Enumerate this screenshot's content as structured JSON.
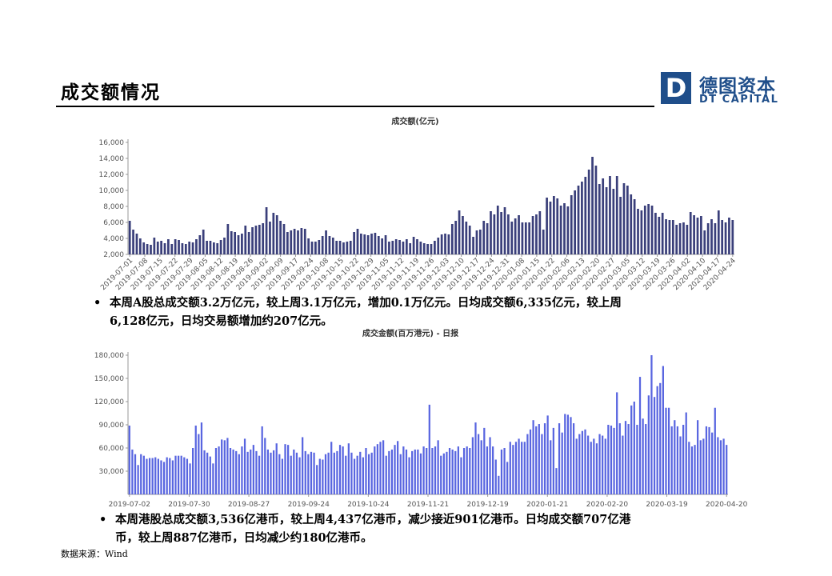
{
  "page": {
    "title": "成交额情况",
    "source": "数据来源：Wind",
    "logo": {
      "mark": "D",
      "cn": "德图资本",
      "en": "DT CAPITAL"
    },
    "bullets": [
      {
        "text_line1": "本周A股总成交额3.2万亿元，较上周3.1万亿元，增加0.1万亿元。日均成交额6,335亿元，较上周",
        "text_line2": "6,128亿元，日均交易额增加约207亿元。"
      },
      {
        "text_line1": "本周港股总成交额3,536亿港币，较上周4,437亿港币，减少接近901亿港币。日均成交额707亿港",
        "text_line2": "币，较上周887亿港币，日均减少约180亿港币。"
      }
    ],
    "bullet_symbol": "•"
  },
  "chart_data": [
    {
      "type": "bar",
      "title": "成交额(亿元)",
      "ylim": [
        2000,
        16000
      ],
      "yticks": [
        "2,000",
        "4,000",
        "6,000",
        "8,000",
        "10,000",
        "12,000",
        "14,000",
        "16,000"
      ],
      "ytick_values": [
        2000,
        4000,
        6000,
        8000,
        10000,
        12000,
        14000,
        16000
      ],
      "xtick_labels": [
        "2019-07-01",
        "2019-07-08",
        "2019-07-15",
        "2019-07-22",
        "2019-07-29",
        "2019-08-05",
        "2019-08-12",
        "2019-08-19",
        "2019-08-26",
        "2019-09-02",
        "2019-09-09",
        "2019-09-17",
        "2019-09-24",
        "2019-10-08",
        "2019-10-15",
        "2019-10-22",
        "2019-10-29",
        "2019-11-05",
        "2019-11-12",
        "2019-11-19",
        "2019-11-26",
        "2019-12-03",
        "2019-12-10",
        "2019-12-17",
        "2019-12-24",
        "2019-12-31",
        "2020-01-08",
        "2020-01-15",
        "2020-01-22",
        "2020-02-06",
        "2020-02-13",
        "2020-02-20",
        "2020-02-27",
        "2020-03-05",
        "2020-03-12",
        "2020-03-19",
        "2020-03-26",
        "2020-04-02",
        "2020-04-10",
        "2020-04-17",
        "2020-04-24"
      ],
      "grid": false,
      "legend": "none",
      "color": "#3a3f7a",
      "values": [
        6200,
        5100,
        4600,
        4000,
        3500,
        3300,
        3200,
        4100,
        3600,
        3700,
        3400,
        3900,
        3300,
        3900,
        3800,
        3400,
        3300,
        3600,
        3500,
        3900,
        4400,
        5100,
        3700,
        3700,
        3500,
        3400,
        3800,
        4100,
        5800,
        4900,
        4800,
        4400,
        4600,
        5600,
        4800,
        5400,
        5600,
        5700,
        5900,
        7900,
        6100,
        7200,
        6900,
        6200,
        5800,
        4800,
        5000,
        5200,
        5000,
        5300,
        5200,
        4000,
        3600,
        3600,
        3800,
        4300,
        5000,
        4300,
        4100,
        3700,
        3700,
        3500,
        3600,
        3700,
        4800,
        5200,
        4600,
        4500,
        4400,
        4600,
        4700,
        4300,
        4000,
        4400,
        3600,
        3700,
        3900,
        3800,
        3600,
        3900,
        3400,
        4200,
        3900,
        3600,
        3400,
        3300,
        3300,
        3700,
        4100,
        4500,
        4600,
        4500,
        5800,
        6200,
        7500,
        6800,
        6100,
        5600,
        4200,
        5000,
        5100,
        6200,
        5900,
        7400,
        7000,
        8100,
        7300,
        7900,
        7000,
        6100,
        6500,
        6900,
        6000,
        6000,
        6000,
        6800,
        7000,
        7400,
        5100,
        9100,
        8600,
        9300,
        9000,
        8100,
        8400,
        8000,
        9400,
        10000,
        10600,
        11100,
        11700,
        12600,
        14200,
        13100,
        10800,
        11500,
        10400,
        11800,
        10200,
        11800,
        9200,
        10900,
        10600,
        9500,
        8900,
        7700,
        7500,
        8100,
        8300,
        8100,
        7200,
        6700,
        7200,
        6400,
        6300,
        6300,
        5700,
        5900,
        6000,
        5700,
        7300,
        6900,
        6600,
        6800,
        5000,
        5900,
        6400,
        5900,
        7500,
        6300,
        6000,
        6600,
        6300
      ]
    },
    {
      "type": "bar",
      "title": "成交金额(百万港元) - 日报",
      "ylim": [
        0,
        180000
      ],
      "yticks": [
        "30,000",
        "60,000",
        "90,000",
        "120,000",
        "150,000",
        "180,000"
      ],
      "ytick_values": [
        30000,
        60000,
        90000,
        120000,
        150000,
        180000
      ],
      "xtick_labels": [
        "2019-07-02",
        "2019-07-30",
        "2019-08-27",
        "2019-09-24",
        "2019-10-24",
        "2019-11-21",
        "2019-12-19",
        "2020-01-21",
        "2020-02-20",
        "2020-03-19",
        "2020-04-20"
      ],
      "grid": false,
      "legend": "none",
      "color": "#5865e0",
      "values": [
        89000,
        58000,
        52000,
        38000,
        52000,
        50000,
        46000,
        47000,
        47000,
        48000,
        46000,
        44000,
        42000,
        48000,
        47000,
        44000,
        50000,
        50000,
        50000,
        48000,
        46000,
        40000,
        60000,
        89000,
        78000,
        93000,
        57000,
        54000,
        49000,
        40000,
        60000,
        62000,
        71000,
        70000,
        73000,
        60000,
        58000,
        56000,
        52000,
        62000,
        72000,
        55000,
        58000,
        64000,
        56000,
        50000,
        88000,
        73000,
        58000,
        54000,
        57000,
        66000,
        52000,
        46000,
        65000,
        64000,
        50000,
        58000,
        54000,
        48000,
        74000,
        56000,
        52000,
        55000,
        54000,
        38000,
        46000,
        45000,
        52000,
        54000,
        68000,
        54000,
        56000,
        64000,
        62000,
        50000,
        66000,
        54000,
        46000,
        50000,
        55000,
        48000,
        60000,
        52000,
        54000,
        62000,
        65000,
        68000,
        70000,
        50000,
        56000,
        58000,
        64000,
        69000,
        52000,
        62000,
        58000,
        48000,
        56000,
        58000,
        58000,
        53000,
        62000,
        60000,
        116000,
        60000,
        62000,
        70000,
        50000,
        53000,
        55000,
        60000,
        58000,
        56000,
        62000,
        48000,
        60000,
        62000,
        60000,
        74000,
        93000,
        78000,
        70000,
        86000,
        62000,
        74000,
        62000,
        45000,
        24000,
        58000,
        60000,
        42000,
        68000,
        64000,
        68000,
        72000,
        68000,
        68000,
        78000,
        84000,
        96000,
        88000,
        91000,
        78000,
        92000,
        102000,
        70000,
        86000,
        34000,
        92000,
        80000,
        104000,
        103000,
        100000,
        92000,
        72000,
        78000,
        82000,
        84000,
        76000,
        68000,
        72000,
        66000,
        78000,
        76000,
        72000,
        90000,
        89000,
        86000,
        132000,
        92000,
        76000,
        95000,
        91000,
        115000,
        120000,
        90000,
        152000,
        98000,
        91000,
        128000,
        180000,
        126000,
        140000,
        144000,
        166000,
        112000,
        112000,
        88000,
        96000,
        88000,
        75000,
        90000,
        106000,
        68000,
        62000,
        64000,
        96000,
        70000,
        72000,
        88000,
        87000,
        80000,
        112000,
        74000,
        70000,
        72000,
        64000
      ]
    }
  ]
}
